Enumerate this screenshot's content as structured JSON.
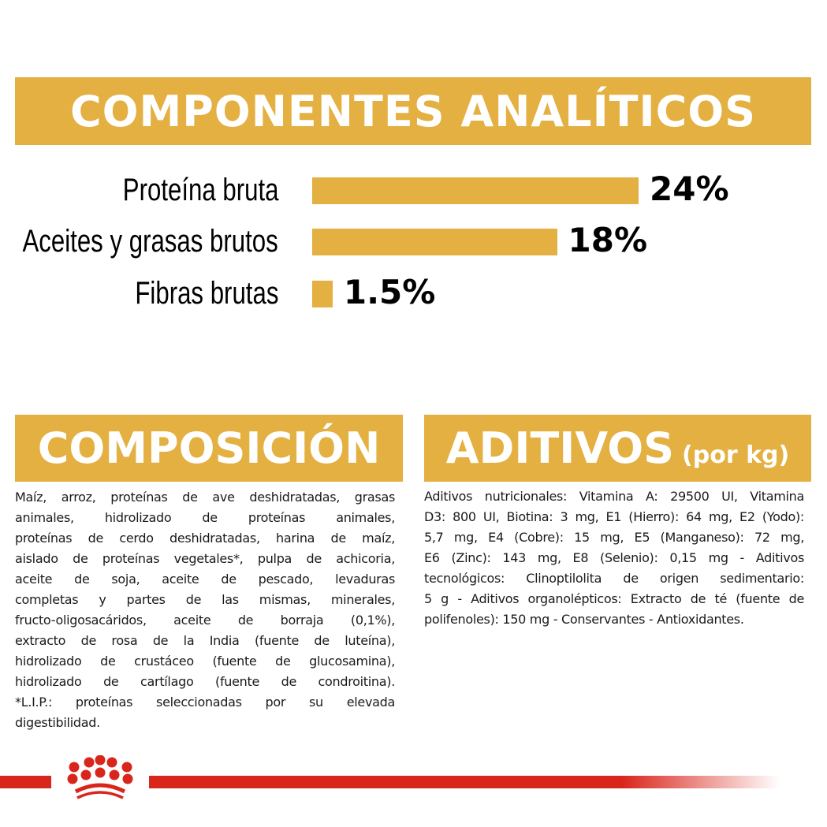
{
  "header": {
    "title": "COMPONENTES ANALÍTICOS"
  },
  "chart_data": {
    "type": "bar",
    "orientation": "horizontal",
    "categories": [
      "Proteína bruta",
      "Aceites y grasas brutos",
      "Fibras brutas"
    ],
    "values": [
      24,
      18,
      1.5
    ],
    "data_labels": [
      "24%",
      "18%",
      "1.5%"
    ],
    "bar_color": "#e3b041"
  },
  "composicion": {
    "title": "COMPOSICIÓN",
    "lines": [
      "Maíz, arroz, proteínas de ave deshidratadas, grasas",
      "animales, hidrolizado de proteínas animales,",
      "proteínas de cerdo deshidratadas, harina de maíz,",
      "aislado de proteínas vegetales*, pulpa de achicoria,",
      "aceite de soja, aceite de pescado, levaduras",
      "completas y partes de las mismas, minerales,",
      "fructo-oligosacáridos, aceite de borraja (0,1%),",
      "extracto de rosa de la India (fuente de luteína),",
      "hidrolizado de crustáceo (fuente de glucosamina),",
      "hidrolizado de cartílago (fuente de condroitina).",
      "*L.I.P.: proteínas seleccionadas por su elevada",
      "digestibilidad."
    ]
  },
  "aditivos": {
    "title": "ADITIVOS",
    "subtitle": "(por kg)",
    "lines": [
      "Aditivos nutricionales: Vitamina A: 29500 UI, Vitamina",
      "D3: 800 UI, Biotina: 3 mg, E1 (Hierro): 64 mg, E2 (Yodo):",
      "5,7 mg, E4 (Cobre): 15 mg, E5 (Manganeso): 72 mg,",
      "E6 (Zinc): 143 mg, E8 (Selenio): 0,15 mg - Aditivos",
      "tecnológicos: Clinoptilolita de origen sedimentario:",
      "5 g - Aditivos organolépticos: Extracto de té (fuente de",
      "polifenoles): 150 mg - Conservantes - Antioxidantes."
    ]
  },
  "brand": {
    "logo": "royal-canin-crown",
    "color": "#d9261c"
  }
}
